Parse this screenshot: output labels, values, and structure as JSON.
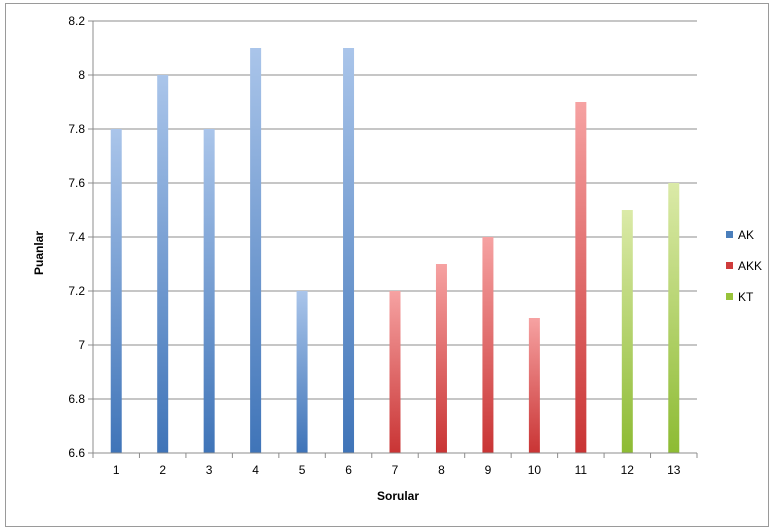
{
  "chart_data": {
    "type": "bar",
    "title": "",
    "xlabel": "Sorular",
    "ylabel": "Puanlar",
    "ylim": [
      6.6,
      8.2
    ],
    "yticks": [
      6.6,
      6.8,
      7,
      7.2,
      7.4,
      7.6,
      7.8,
      8,
      8.2
    ],
    "ytick_labels": [
      "6.6",
      "6.8",
      "7",
      "7.2",
      "7.4",
      "7.6",
      "7.8",
      "8",
      "8.2"
    ],
    "grid": true,
    "legend_position": "right",
    "categories": [
      "1",
      "2",
      "3",
      "4",
      "5",
      "6",
      "7",
      "8",
      "9",
      "10",
      "11",
      "12",
      "13"
    ],
    "series": [
      {
        "name": "AK",
        "color": "#4a7ebb",
        "values": [
          7.8,
          8.0,
          7.8,
          8.1,
          7.2,
          8.1,
          null,
          null,
          null,
          null,
          null,
          null,
          null
        ]
      },
      {
        "name": "AKK",
        "color": "#cf3b3b",
        "values": [
          null,
          null,
          null,
          null,
          null,
          null,
          7.2,
          7.3,
          7.4,
          7.1,
          7.9,
          null,
          null
        ]
      },
      {
        "name": "KT",
        "color": "#98c33a",
        "values": [
          null,
          null,
          null,
          null,
          null,
          null,
          null,
          null,
          null,
          null,
          null,
          7.5,
          7.6
        ]
      }
    ]
  }
}
